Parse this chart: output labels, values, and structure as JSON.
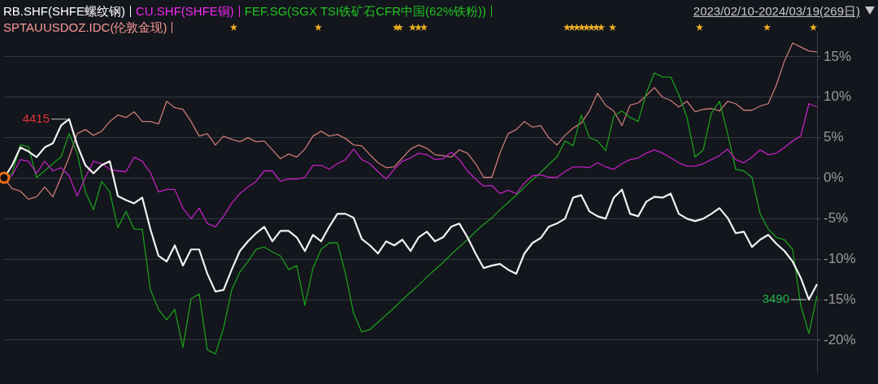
{
  "chart_data": {
    "type": "line",
    "subtitle": "2023/02/10-2024/03/19(269日)",
    "categories": [
      null,
      null,
      null,
      null,
      null,
      null,
      null,
      null,
      null,
      null,
      null,
      null,
      null,
      null,
      null,
      null,
      null,
      null,
      null,
      null,
      null,
      null,
      null,
      null,
      null,
      null,
      null,
      null,
      null,
      null,
      null,
      null,
      null,
      null,
      null,
      null,
      null,
      null,
      null,
      null,
      null,
      null,
      null,
      null,
      null,
      null,
      null,
      null,
      null,
      null,
      null,
      null,
      null,
      null,
      null,
      null,
      null,
      null,
      null,
      null,
      null,
      null,
      null,
      null,
      null,
      null,
      null,
      null,
      null,
      null,
      null,
      null,
      null,
      null,
      null,
      null,
      null,
      null,
      null,
      null,
      null,
      null,
      null,
      null,
      null,
      null,
      null,
      null,
      null,
      null,
      null,
      null,
      null,
      null,
      null,
      null,
      null,
      null,
      null,
      null,
      null
    ],
    "series": [
      {
        "name": "RB.SHF(SHFE螺纹钢)",
        "color": "#f2f2f2",
        "values": [
          0,
          1.6,
          3.8,
          3.3,
          2.6,
          3.8,
          4.3,
          6.5,
          7.3,
          4.1,
          1.6,
          0.6,
          1.6,
          2.1,
          -2.2,
          -2.7,
          -3.1,
          -2.4,
          -6.3,
          -9.6,
          -10.3,
          -8.3,
          -10.8,
          -8.8,
          -8.8,
          -11.8,
          -14.0,
          -13.8,
          -11.3,
          -9.0,
          -7.8,
          -6.8,
          -6.0,
          -7.8,
          -6.5,
          -6.5,
          -7.3,
          -9.0,
          -7.0,
          -7.8,
          -6.0,
          -4.4,
          -4.4,
          -4.9,
          -7.5,
          -8.3,
          -9.3,
          -7.8,
          -8.3,
          -7.6,
          -9.0,
          -7.3,
          -6.6,
          -7.8,
          -7.3,
          -6.0,
          -5.6,
          -7.3,
          -9.3,
          -11.1,
          -10.8,
          -10.6,
          -11.3,
          -11.8,
          -9.3,
          -8.0,
          -7.4,
          -6.0,
          -5.6,
          -5.0,
          -2.4,
          -2.1,
          -4.1,
          -4.7,
          -5.0,
          -2.4,
          -1.4,
          -4.4,
          -4.7,
          -2.9,
          -2.3,
          -2.4,
          -1.9,
          -4.4,
          -5.0,
          -5.3,
          -5.0,
          -4.4,
          -3.7,
          -4.9,
          -6.8,
          -6.6,
          -8.5,
          -7.6,
          -7.0,
          -8.1,
          -9.0,
          -10.3,
          -12.3,
          -15.0,
          -13.1
        ]
      },
      {
        "name": "CU.SHF(SHFE铜)",
        "color": "#c21fc2",
        "values": [
          0,
          0.3,
          2.3,
          2.1,
          0.6,
          2.1,
          0.9,
          1.3,
          0.3,
          -2.2,
          0.1,
          2.1,
          1.8,
          1.1,
          0.9,
          0.8,
          2.6,
          2.1,
          0.7,
          -1.7,
          -1.4,
          -1.4,
          -3.7,
          -5.0,
          -3.7,
          -5.6,
          -6.0,
          -4.7,
          -3.1,
          -1.9,
          -1.1,
          -0.4,
          0.9,
          0.9,
          -0.4,
          -0.1,
          -0.1,
          0.1,
          1.6,
          1.6,
          1.1,
          1.8,
          2.3,
          3.6,
          2.3,
          1.8,
          0.8,
          -0.1,
          1.1,
          2.1,
          2.5,
          3.1,
          2.9,
          2.3,
          2.4,
          3.2,
          2.3,
          0.9,
          -0.1,
          -1.0,
          -0.9,
          -1.9,
          -1.5,
          -1.9,
          -0.6,
          0.3,
          0.4,
          0.1,
          0.1,
          0.8,
          1.4,
          1.4,
          1.3,
          1.9,
          1.4,
          1.1,
          1.8,
          2.3,
          2.5,
          3.1,
          3.5,
          3.1,
          2.5,
          1.9,
          1.5,
          1.5,
          1.8,
          2.3,
          2.8,
          3.6,
          2.3,
          1.9,
          2.6,
          3.5,
          2.9,
          3.1,
          3.8,
          4.6,
          5.2,
          9.2,
          8.8
        ]
      },
      {
        "name": "FEF.SG(SGX TSI铁矿石CFR中国(62%铁粉))",
        "color": "#1c9c1c",
        "values": [
          0,
          0.6,
          4.1,
          3.9,
          0.1,
          0.9,
          1.8,
          2.6,
          5.5,
          3.1,
          -1.7,
          -3.9,
          -0.4,
          -1.7,
          -6.1,
          -4.1,
          -6.3,
          -6.3,
          -13.8,
          -16.2,
          -17.5,
          -16.2,
          -20.9,
          -14.9,
          -14.3,
          -21.2,
          -21.7,
          -18.5,
          -13.8,
          -11.6,
          -10.3,
          -8.8,
          -8.5,
          -9.1,
          -9.6,
          -11.3,
          -10.8,
          -15.7,
          -11.1,
          -8.8,
          -8.0,
          -8.0,
          -11.8,
          -16.7,
          -19.0,
          -18.7,
          -17.8,
          -16.9,
          -16.0,
          -15.0,
          -14.1,
          -13.2,
          -12.2,
          -11.3,
          -10.4,
          -9.4,
          -8.5,
          -7.6,
          -6.6,
          -5.7,
          -4.9,
          -3.9,
          -3.0,
          -2.1,
          -1.1,
          -0.2,
          0.7,
          1.7,
          2.6,
          4.6,
          4.0,
          7.8,
          5.0,
          4.6,
          3.4,
          7.7,
          8.3,
          7.5,
          7.0,
          10.5,
          13.0,
          12.5,
          12.5,
          10.3,
          7.5,
          2.6,
          3.5,
          8.0,
          9.5,
          5.5,
          1.1,
          0.9,
          0.1,
          -4.4,
          -6.3,
          -7.3,
          -7.6,
          -8.8,
          -15.7,
          -19.2,
          -14.5
        ]
      },
      {
        "name": "SPTAUUSDOZ.IDC(伦敦金现)",
        "color": "#c97a78",
        "values": [
          0,
          -1.3,
          -1.6,
          -2.6,
          -2.3,
          -1.1,
          -2.3,
          0.1,
          2.6,
          5.5,
          6.0,
          5.3,
          5.8,
          7.0,
          7.8,
          7.5,
          8.2,
          7.0,
          7.0,
          6.7,
          9.5,
          8.7,
          8.5,
          7.0,
          5.2,
          5.5,
          4.1,
          5.2,
          4.8,
          4.5,
          5.0,
          4.5,
          4.6,
          3.5,
          2.4,
          3.0,
          2.6,
          3.6,
          5.2,
          5.8,
          5.2,
          5.4,
          4.9,
          4.1,
          4.0,
          2.9,
          1.9,
          1.3,
          1.4,
          2.5,
          3.6,
          4.1,
          3.7,
          2.9,
          2.8,
          2.6,
          3.5,
          3.1,
          1.8,
          0.1,
          0.1,
          3.1,
          5.5,
          6.0,
          7.0,
          6.3,
          6.5,
          5.0,
          4.1,
          5.3,
          6.2,
          6.8,
          8.3,
          10.5,
          9.0,
          8.3,
          6.5,
          9.0,
          9.3,
          10.2,
          11.2,
          10.0,
          9.6,
          8.8,
          9.5,
          8.2,
          8.5,
          8.6,
          8.3,
          9.5,
          9.2,
          8.4,
          8.4,
          8.9,
          9.2,
          11.5,
          14.5,
          16.7,
          16.2,
          15.7,
          15.6
        ]
      }
    ],
    "ylim": [
      -24,
      18
    ],
    "yticks": [
      {
        "value": 15,
        "label": "15%"
      },
      {
        "value": 10,
        "label": "10%"
      },
      {
        "value": 5,
        "label": "5%"
      },
      {
        "value": 0,
        "label": "0%"
      },
      {
        "value": -5,
        "label": "-5%"
      },
      {
        "value": -10,
        "label": "-10%"
      },
      {
        "value": -15,
        "label": "-15%"
      },
      {
        "value": -20,
        "label": "-20%"
      }
    ],
    "annotations": [
      "4415",
      "3490"
    ],
    "grid": "y",
    "legend": "top left",
    "marker": "none",
    "line_style": "solid",
    "tick_labels": "y"
  }
}
